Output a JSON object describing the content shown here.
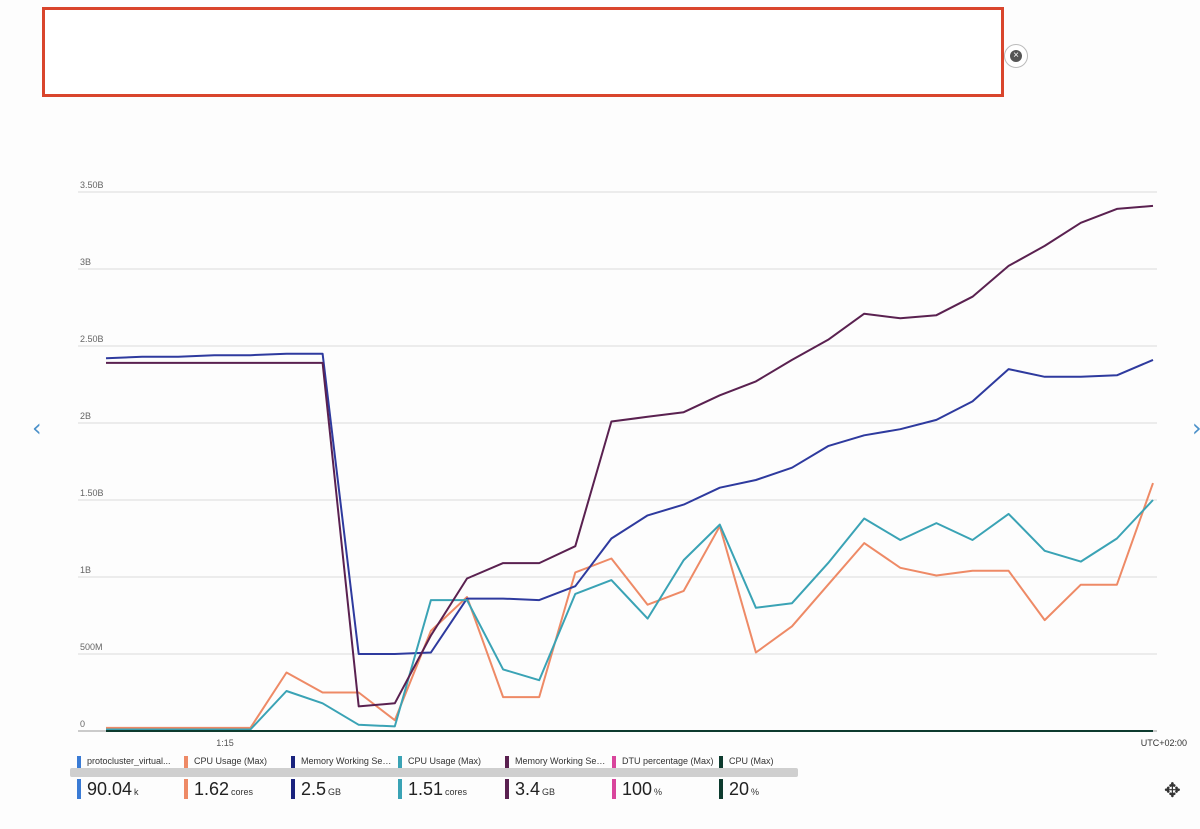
{
  "ui": {
    "close_icon": "close-icon",
    "prev_icon": "chevron-left-icon",
    "next_icon": "chevron-right-icon",
    "move_icon": "move-icon"
  },
  "chart_data": {
    "type": "line",
    "title": "",
    "xlabel": "",
    "ylabel": "",
    "ylim": [
      0,
      3.5
    ],
    "y_ticks": [
      {
        "value": 0,
        "label": "0"
      },
      {
        "value": 0.5,
        "label": "500M"
      },
      {
        "value": 1,
        "label": "1B"
      },
      {
        "value": 1.5,
        "label": "1.50B"
      },
      {
        "value": 2,
        "label": "2B"
      },
      {
        "value": 2.5,
        "label": "2.50B"
      },
      {
        "value": 3,
        "label": "3B"
      },
      {
        "value": 3.5,
        "label": "3.50B"
      }
    ],
    "x_tick_label": "1:15",
    "timezone_label": "UTC+02:00",
    "grid": true,
    "x": [
      0,
      1,
      2,
      3,
      4,
      5,
      6,
      7,
      8,
      9,
      10,
      11,
      12,
      13,
      14,
      15,
      16,
      17,
      18,
      19,
      20,
      21,
      22,
      23,
      24,
      25,
      26,
      27,
      28,
      29
    ],
    "series": [
      {
        "name": "protocluster_virtual...",
        "color": "#3a7bd5",
        "values": [
          0,
          0,
          0,
          0,
          0,
          0,
          0,
          0,
          0,
          0,
          0,
          0,
          0,
          0,
          0,
          0,
          0,
          0,
          0,
          0,
          0,
          0,
          0,
          0,
          0,
          0,
          0,
          0,
          0,
          0
        ]
      },
      {
        "name": "CPU Usage (Max)",
        "color": "#ee8a66",
        "values": [
          0.02,
          0.02,
          0.02,
          0.02,
          0.02,
          0.38,
          0.25,
          0.25,
          0.07,
          0.65,
          0.87,
          0.22,
          0.22,
          1.03,
          1.12,
          0.82,
          0.91,
          1.33,
          0.51,
          0.68,
          0.95,
          1.22,
          1.06,
          1.01,
          1.04,
          1.04,
          0.72,
          0.95,
          0.95,
          1.61
        ]
      },
      {
        "name": "Memory Working Set B...",
        "color": "#2e3a9e",
        "values": [
          2.42,
          2.43,
          2.43,
          2.44,
          2.44,
          2.45,
          2.45,
          0.5,
          0.5,
          0.51,
          0.86,
          0.86,
          0.85,
          0.94,
          1.25,
          1.4,
          1.47,
          1.58,
          1.63,
          1.71,
          1.85,
          1.92,
          1.96,
          2.02,
          2.14,
          2.35,
          2.3,
          2.3,
          2.31,
          2.41
        ]
      },
      {
        "name": "CPU Usage (Max)",
        "color": "#3aa3b5",
        "values": [
          0.01,
          0.01,
          0.01,
          0.01,
          0.01,
          0.26,
          0.18,
          0.04,
          0.03,
          0.85,
          0.85,
          0.4,
          0.33,
          0.89,
          0.98,
          0.73,
          1.11,
          1.34,
          0.8,
          0.83,
          1.09,
          1.38,
          1.24,
          1.35,
          1.24,
          1.41,
          1.17,
          1.1,
          1.25,
          1.5
        ]
      },
      {
        "name": "Memory Working Set B...",
        "color": "#5a2150",
        "values": [
          2.39,
          2.39,
          2.39,
          2.39,
          2.39,
          2.39,
          2.39,
          0.16,
          0.18,
          0.62,
          0.99,
          1.09,
          1.09,
          1.2,
          2.01,
          2.04,
          2.07,
          2.18,
          2.27,
          2.41,
          2.54,
          2.71,
          2.68,
          2.7,
          2.82,
          3.02,
          3.15,
          3.3,
          3.39,
          3.41
        ]
      },
      {
        "name": "DTU percentage (Max)",
        "color": "#d9459c",
        "values": [
          0,
          0,
          0,
          0,
          0,
          0,
          0,
          0,
          0,
          0,
          0,
          0,
          0,
          0,
          0,
          0,
          0,
          0,
          0,
          0,
          0,
          0,
          0,
          0,
          0,
          0,
          0,
          0,
          0,
          0
        ]
      },
      {
        "name": "CPU (Max)",
        "color": "#0d3b2e",
        "values": [
          0,
          0,
          0,
          0,
          0,
          0,
          0,
          0,
          0,
          0,
          0,
          0,
          0,
          0,
          0,
          0,
          0,
          0,
          0,
          0,
          0,
          0,
          0,
          0,
          0,
          0,
          0,
          0,
          0,
          0
        ]
      }
    ],
    "legend": [
      {
        "name": "protocluster_virtual...",
        "value": "90.04",
        "unit": "k",
        "color": "#3a7bd5"
      },
      {
        "name": "CPU Usage (Max)",
        "value": "1.62",
        "unit": "cores",
        "color": "#ee8a66"
      },
      {
        "name": "Memory Working Set B...",
        "value": "2.5",
        "unit": "GB",
        "color": "#1a237e"
      },
      {
        "name": "CPU Usage (Max)",
        "value": "1.51",
        "unit": "cores",
        "color": "#3aa3b5"
      },
      {
        "name": "Memory Working Set B...",
        "value": "3.4",
        "unit": "GB",
        "color": "#5a2150"
      },
      {
        "name": "DTU percentage (Max)",
        "value": "100",
        "unit": "%",
        "color": "#d9459c"
      },
      {
        "name": "CPU (Max)",
        "value": "20",
        "unit": "%",
        "color": "#0d3b2e"
      }
    ]
  }
}
